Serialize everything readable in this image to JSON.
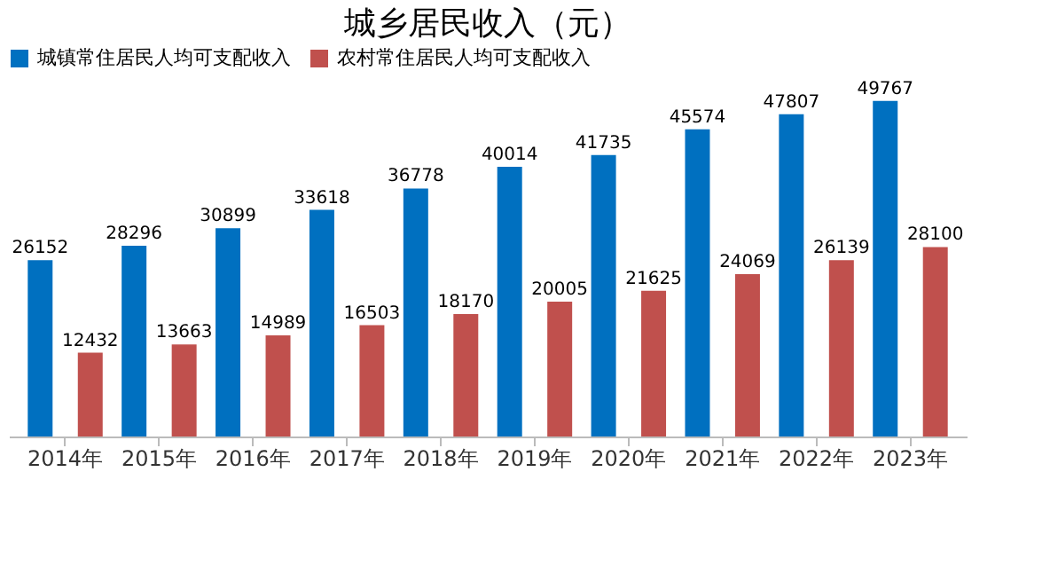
{
  "chart_data": {
    "type": "bar",
    "title": "城乡居民收入（元）",
    "categories": [
      "2014年",
      "2015年",
      "2016年",
      "2017年",
      "2018年",
      "2019年",
      "2020年",
      "2021年",
      "2022年",
      "2023年"
    ],
    "series": [
      {
        "name": "城镇常住居民人均可支配收入",
        "color": "#0070c0",
        "values": [
          26152,
          28296,
          30899,
          33618,
          36778,
          40014,
          41735,
          45574,
          47807,
          49767
        ]
      },
      {
        "name": "农村常住居民人均可支配收入",
        "color": "#c0504d",
        "values": [
          12432,
          13663,
          14989,
          16503,
          18170,
          20005,
          21625,
          24069,
          26139,
          28100
        ]
      }
    ],
    "data_labels": true,
    "legend": "top",
    "tick_labels": "x",
    "grid": false
  }
}
